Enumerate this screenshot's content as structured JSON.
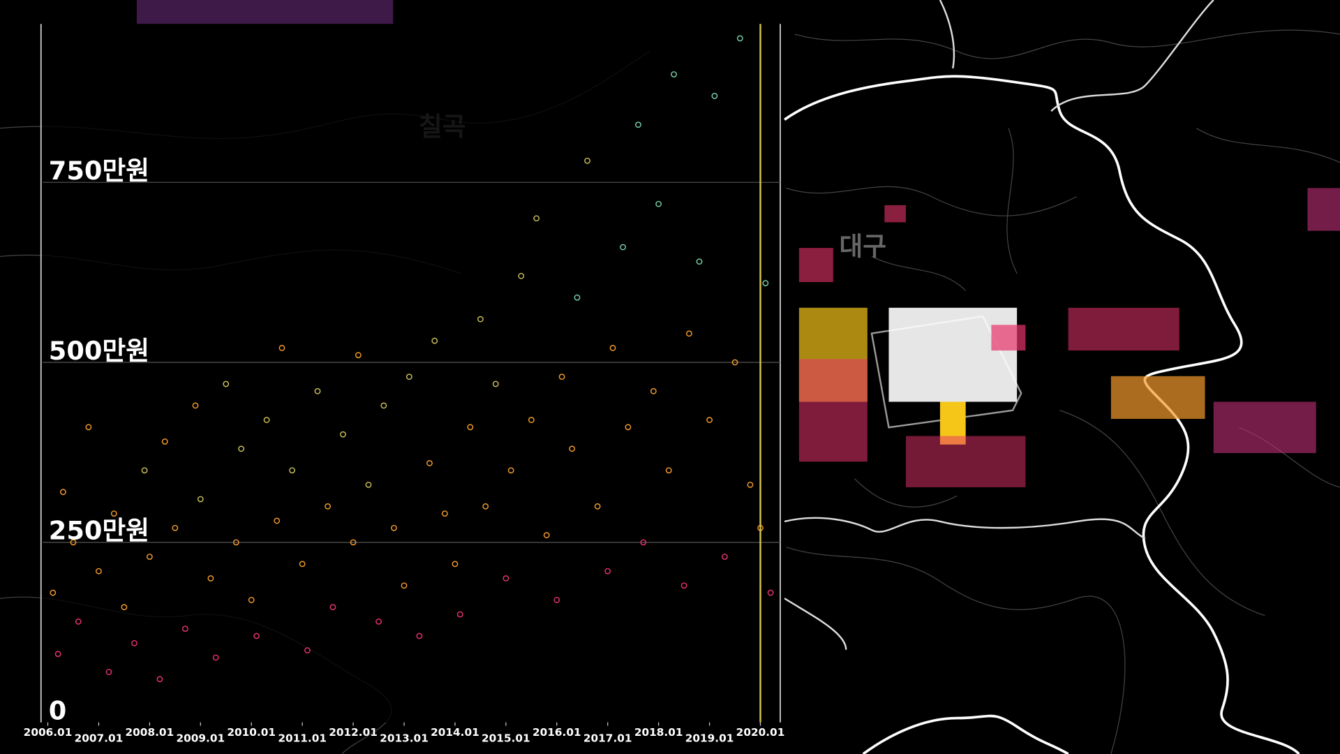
{
  "map_labels": [
    "칠곡",
    "대구"
  ],
  "chart_data": {
    "type": "scatter",
    "x": [
      2006.1,
      2006.2,
      2006.3,
      2006.5,
      2006.6,
      2006.8,
      2007.0,
      2007.2,
      2007.3,
      2007.5,
      2007.7,
      2007.9,
      2008.0,
      2008.2,
      2008.3,
      2008.5,
      2008.7,
      2008.9,
      2009.0,
      2009.2,
      2009.3,
      2009.5,
      2009.7,
      2009.8,
      2010.0,
      2010.1,
      2010.3,
      2010.5,
      2010.6,
      2010.8,
      2011.0,
      2011.1,
      2011.3,
      2011.5,
      2011.6,
      2011.8,
      2012.0,
      2012.1,
      2012.3,
      2012.5,
      2012.6,
      2012.8,
      2013.0,
      2013.1,
      2013.3,
      2013.5,
      2013.6,
      2013.8,
      2014.0,
      2014.1,
      2014.3,
      2014.5,
      2014.6,
      2014.8,
      2015.0,
      2015.1,
      2015.3,
      2015.5,
      2015.6,
      2015.8,
      2016.0,
      2016.1,
      2016.3,
      2016.4,
      2016.6,
      2016.8,
      2017.0,
      2017.1,
      2017.3,
      2017.4,
      2017.6,
      2017.7,
      2017.9,
      2018.0,
      2018.2,
      2018.3,
      2018.5,
      2018.6,
      2018.8,
      2019.0,
      2019.1,
      2019.3,
      2019.5,
      2019.6,
      2019.8,
      2020.0,
      2020.1,
      2020.2
    ],
    "values": [
      180,
      95,
      320,
      250,
      140,
      410,
      210,
      70,
      290,
      160,
      110,
      350,
      230,
      60,
      390,
      270,
      130,
      440,
      310,
      200,
      90,
      470,
      250,
      380,
      170,
      120,
      420,
      280,
      520,
      350,
      220,
      100,
      460,
      300,
      160,
      400,
      250,
      510,
      330,
      140,
      440,
      270,
      190,
      480,
      120,
      360,
      530,
      290,
      220,
      150,
      410,
      560,
      300,
      470,
      200,
      350,
      620,
      420,
      700,
      260,
      170,
      480,
      380,
      590,
      780,
      300,
      210,
      520,
      660,
      410,
      830,
      250,
      460,
      720,
      350,
      900,
      190,
      540,
      640,
      420,
      870,
      230,
      500,
      950,
      330,
      270,
      610,
      180
    ],
    "point_colors": [
      "#f39a2c",
      "#e8336b",
      "#f39a2c",
      "#f39a2c",
      "#e8336b",
      "#f39a2c",
      "#f39a2c",
      "#e8336b",
      "#f39a2c",
      "#f39a2c",
      "#e8336b",
      "#c9bf5a",
      "#f39a2c",
      "#e8336b",
      "#f39a2c",
      "#f39a2c",
      "#e8336b",
      "#f39a2c",
      "#c9bf5a",
      "#f39a2c",
      "#e8336b",
      "#c9bf5a",
      "#f39a2c",
      "#c9bf5a",
      "#f39a2c",
      "#e8336b",
      "#c9bf5a",
      "#f39a2c",
      "#f39a2c",
      "#c9bf5a",
      "#f39a2c",
      "#e8336b",
      "#c9bf5a",
      "#f39a2c",
      "#e8336b",
      "#c9bf5a",
      "#f39a2c",
      "#f39a2c",
      "#c9bf5a",
      "#e8336b",
      "#c9bf5a",
      "#f39a2c",
      "#f39a2c",
      "#c9bf5a",
      "#e8336b",
      "#f39a2c",
      "#c9bf5a",
      "#f39a2c",
      "#f39a2c",
      "#e8336b",
      "#f39a2c",
      "#c9bf5a",
      "#f39a2c",
      "#c9bf5a",
      "#e8336b",
      "#f39a2c",
      "#c9bf5a",
      "#f39a2c",
      "#c9bf5a",
      "#f39a2c",
      "#e8336b",
      "#f39a2c",
      "#f39a2c",
      "#74cfa6",
      "#c9bf5a",
      "#f39a2c",
      "#e8336b",
      "#f39a2c",
      "#74cfa6",
      "#f39a2c",
      "#74cfa6",
      "#e8336b",
      "#f39a2c",
      "#74cfa6",
      "#f39a2c",
      "#74cfa6",
      "#e8336b",
      "#f39a2c",
      "#74cfa6",
      "#f39a2c",
      "#74cfa6",
      "#e8336b",
      "#f39a2c",
      "#74cfa6",
      "#f39a2c",
      "#f39a2c",
      "#74cfa6",
      "#e8336b"
    ],
    "xlim": [
      2005.9,
      2020.39
    ],
    "xticks": [
      {
        "value": 2006,
        "label": "2006.01"
      },
      {
        "value": 2007,
        "label": "2007.01"
      },
      {
        "value": 2008,
        "label": "2008.01"
      },
      {
        "value": 2009,
        "label": "2009.01"
      },
      {
        "value": 2010,
        "label": "2010.01"
      },
      {
        "value": 2011,
        "label": "2011.01"
      },
      {
        "value": 2012,
        "label": "2012.01"
      },
      {
        "value": 2013,
        "label": "2013.01"
      },
      {
        "value": 2014,
        "label": "2014.01"
      },
      {
        "value": 2015,
        "label": "2015.01"
      },
      {
        "value": 2016,
        "label": "2016.01"
      },
      {
        "value": 2017,
        "label": "2017.01"
      },
      {
        "value": 2018,
        "label": "2018.01"
      },
      {
        "value": 2019,
        "label": "2019.01"
      },
      {
        "value": 2020,
        "label": "2020.01"
      }
    ],
    "ylim": [
      0,
      970
    ],
    "yticks": [
      0,
      {
        "value": 250,
        "label": "250만원"
      },
      {
        "value": 500,
        "label": "500만원"
      },
      {
        "value": 750,
        "label": "750만원"
      }
    ],
    "grid": true,
    "highlight_x": 2020.0,
    "highlight_color": "#d4c24a"
  }
}
